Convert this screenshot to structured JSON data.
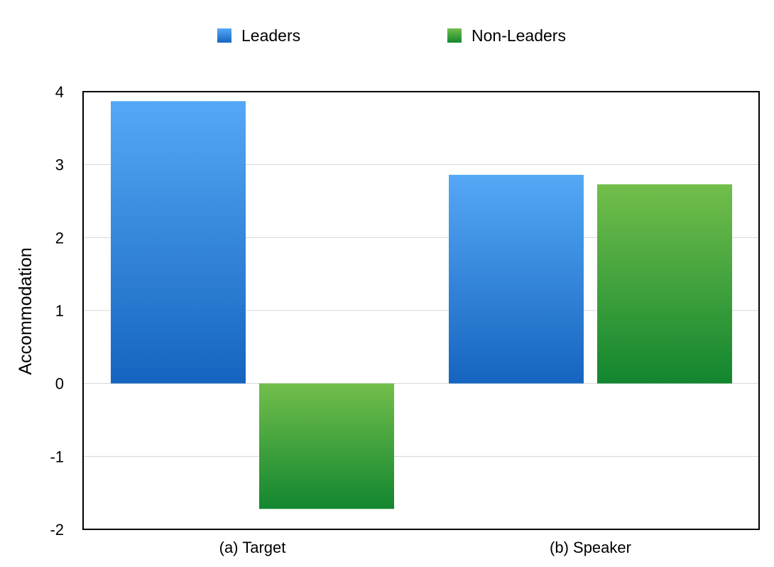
{
  "chart_data": {
    "type": "bar",
    "title": "",
    "xlabel": "",
    "ylabel": "Accommodation",
    "categories": [
      "(a) Target",
      "(b) Speaker"
    ],
    "series": [
      {
        "name": "Leaders",
        "values": [
          3.87,
          2.86
        ],
        "color": "#2f86e0"
      },
      {
        "name": "Non-Leaders",
        "values": [
          -1.72,
          2.73
        ],
        "color": "#3aa83a"
      }
    ],
    "ylim": [
      -2,
      4
    ],
    "yticks": [
      4,
      3,
      2,
      1,
      0,
      -1,
      -2
    ],
    "grid": true,
    "legend": "top"
  }
}
